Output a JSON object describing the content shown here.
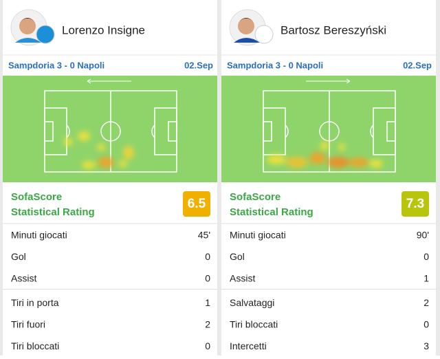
{
  "cards": [
    {
      "player": "Lorenzo Insigne",
      "match": "Sampdoria 3 - 0 Napoli",
      "date": "02.Sep",
      "rating_title": "SofaScore",
      "rating_subtitle": "Statistical Rating",
      "rating": 6.5,
      "stats": [
        [
          {
            "label": "Minuti giocati",
            "value": "45'"
          },
          {
            "label": "Gol",
            "value": 0
          },
          {
            "label": "Assist",
            "value": 0
          }
        ],
        [
          {
            "label": "Tiri in porta",
            "value": 1
          },
          {
            "label": "Tiri fuori",
            "value": 2
          },
          {
            "label": "Tiri bloccati",
            "value": 0
          }
        ]
      ]
    },
    {
      "player": "Bartosz Bereszyński",
      "match": "Sampdoria 3 - 0 Napoli",
      "date": "02.Sep",
      "rating_title": "SofaScore",
      "rating_subtitle": "Statistical Rating",
      "rating": 7.3,
      "stats": [
        [
          {
            "label": "Minuti giocati",
            "value": "90'"
          },
          {
            "label": "Gol",
            "value": 0
          },
          {
            "label": "Assist",
            "value": 1
          }
        ],
        [
          {
            "label": "Salvataggi",
            "value": 2
          },
          {
            "label": "Tiri bloccati",
            "value": 0
          },
          {
            "label": "Intercetti",
            "value": 3
          }
        ]
      ]
    }
  ]
}
